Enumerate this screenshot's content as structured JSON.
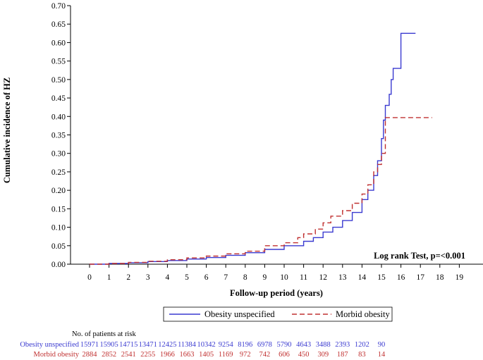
{
  "chart_data": {
    "type": "line",
    "step": true,
    "xlabel": "Follow-up period (years)",
    "ylabel": "Cumulative incidence of HZ",
    "xlim": [
      -1,
      20
    ],
    "ylim": [
      0,
      0.7
    ],
    "x_ticks": [
      0,
      1,
      2,
      3,
      4,
      5,
      6,
      7,
      8,
      9,
      10,
      11,
      12,
      13,
      14,
      15,
      16,
      17,
      18,
      19
    ],
    "y_ticks": [
      "0.00",
      "0.05",
      "0.10",
      "0.15",
      "0.20",
      "0.25",
      "0.30",
      "0.35",
      "0.40",
      "0.45",
      "0.50",
      "0.55",
      "0.60",
      "0.65",
      "0.70"
    ],
    "grid": false,
    "legend_position": "bottom",
    "annotation": "Log rank Test, p=<0.001",
    "series": [
      {
        "name": "Obesity unspecified",
        "color": "#3a3ad0",
        "style": "solid",
        "x": [
          0,
          1,
          2,
          3,
          4,
          5,
          6,
          7,
          8,
          9,
          10,
          11,
          11.5,
          12,
          12.5,
          13,
          13.5,
          14,
          14.3,
          14.6,
          14.8,
          15,
          15.1,
          15.2,
          15.4,
          15.5,
          15.6,
          16,
          16.75
        ],
        "y": [
          0,
          0.002,
          0.004,
          0.007,
          0.01,
          0.014,
          0.018,
          0.024,
          0.031,
          0.04,
          0.05,
          0.062,
          0.072,
          0.087,
          0.1,
          0.118,
          0.14,
          0.175,
          0.2,
          0.24,
          0.28,
          0.34,
          0.39,
          0.43,
          0.46,
          0.5,
          0.53,
          0.625,
          0.625
        ]
      },
      {
        "name": "Morbid obesity",
        "color": "#c03030",
        "style": "dashed",
        "x": [
          0,
          1,
          2,
          3,
          4,
          5,
          6,
          7,
          8,
          9,
          10,
          10.7,
          11,
          11.6,
          12,
          12.4,
          13,
          13.5,
          14,
          14.3,
          14.6,
          14.8,
          15,
          15.2,
          17.6
        ],
        "y": [
          0,
          0.002,
          0.005,
          0.008,
          0.012,
          0.017,
          0.022,
          0.028,
          0.035,
          0.05,
          0.058,
          0.072,
          0.082,
          0.095,
          0.112,
          0.13,
          0.145,
          0.165,
          0.19,
          0.215,
          0.25,
          0.27,
          0.3,
          0.397,
          0.397
        ]
      }
    ],
    "risk_table": {
      "title": "No. of patients at risk",
      "rows": [
        {
          "name": "Obesity unspecified",
          "color": "#3a3ad0",
          "values": [
            "15971",
            "15905",
            "14715",
            "13471",
            "12425",
            "11384",
            "10342",
            "9254",
            "8196",
            "6978",
            "5790",
            "4643",
            "3488",
            "2393",
            "1202",
            "90"
          ]
        },
        {
          "name": "Morbid obesity",
          "color": "#c03030",
          "values": [
            "2884",
            "2852",
            "2541",
            "2255",
            "1966",
            "1663",
            "1405",
            "1169",
            "972",
            "742",
            "606",
            "450",
            "309",
            "187",
            "83",
            "14"
          ]
        }
      ]
    }
  }
}
